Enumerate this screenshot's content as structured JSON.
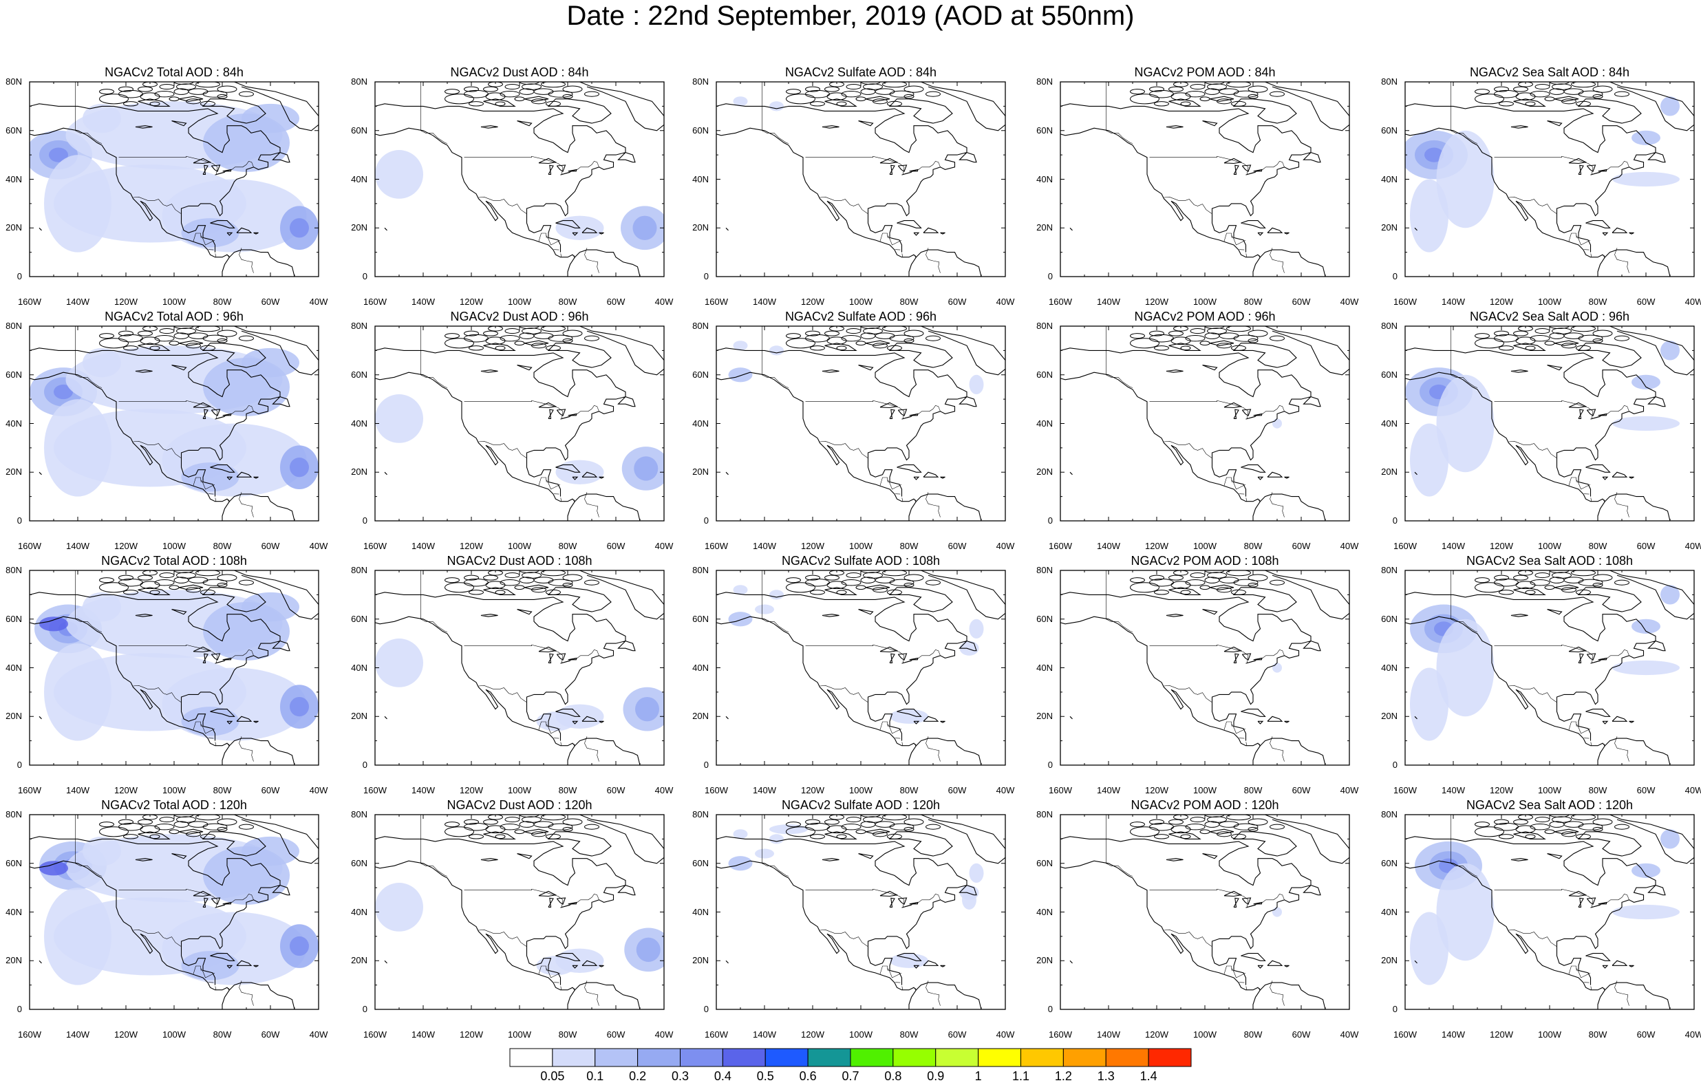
{
  "title": "Date : 22nd September, 2019 (AOD at 550nm)",
  "latitude_ticks": [
    "80N",
    "60N",
    "40N",
    "20N",
    "0"
  ],
  "longitude_ticks": [
    "160W",
    "140W",
    "120W",
    "100W",
    "80W",
    "60W",
    "40W"
  ],
  "panels": [
    [
      {
        "title": "NGACv2 Total AOD : 84h",
        "species": "total",
        "forecast_hour": 84
      },
      {
        "title": "NGACv2 Dust AOD : 84h",
        "species": "dust",
        "forecast_hour": 84
      },
      {
        "title": "NGACv2 Sulfate AOD : 84h",
        "species": "sulfate",
        "forecast_hour": 84
      },
      {
        "title": "NGACv2 POM AOD : 84h",
        "species": "pom",
        "forecast_hour": 84
      },
      {
        "title": "NGACv2 Sea Salt AOD : 84h",
        "species": "seasalt",
        "forecast_hour": 84
      }
    ],
    [
      {
        "title": "NGACv2 Total AOD : 96h",
        "species": "total",
        "forecast_hour": 96
      },
      {
        "title": "NGACv2 Dust AOD : 96h",
        "species": "dust",
        "forecast_hour": 96
      },
      {
        "title": "NGACv2 Sulfate AOD : 96h",
        "species": "sulfate",
        "forecast_hour": 96
      },
      {
        "title": "NGACv2 POM AOD : 96h",
        "species": "pom",
        "forecast_hour": 96
      },
      {
        "title": "NGACv2 Sea Salt AOD : 96h",
        "species": "seasalt",
        "forecast_hour": 96
      }
    ],
    [
      {
        "title": "NGACv2 Total AOD : 108h",
        "species": "total",
        "forecast_hour": 108
      },
      {
        "title": "NGACv2 Dust AOD : 108h",
        "species": "dust",
        "forecast_hour": 108
      },
      {
        "title": "NGACv2 Sulfate AOD : 108h",
        "species": "sulfate",
        "forecast_hour": 108
      },
      {
        "title": "NGACv2 POM AOD : 108h",
        "species": "pom",
        "forecast_hour": 108
      },
      {
        "title": "NGACv2 Sea Salt AOD : 108h",
        "species": "seasalt",
        "forecast_hour": 108
      }
    ],
    [
      {
        "title": "NGACv2 Total AOD : 120h",
        "species": "total",
        "forecast_hour": 120
      },
      {
        "title": "NGACv2 Dust AOD : 120h",
        "species": "dust",
        "forecast_hour": 120
      },
      {
        "title": "NGACv2 Sulfate AOD : 120h",
        "species": "sulfate",
        "forecast_hour": 120
      },
      {
        "title": "NGACv2 POM AOD : 120h",
        "species": "pom",
        "forecast_hour": 120
      },
      {
        "title": "NGACv2 Sea Salt  AOD : 120h",
        "species": "seasalt",
        "forecast_hour": 120
      }
    ]
  ],
  "colorbar": {
    "labels": [
      "0.05",
      "0.1",
      "0.2",
      "0.3",
      "0.4",
      "0.5",
      "0.6",
      "0.7",
      "0.8",
      "0.9",
      "1",
      "1.1",
      "1.2",
      "1.3",
      "1.4"
    ],
    "colors": [
      "#ffffff",
      "#d4dcfa",
      "#b4c3f6",
      "#96aaf2",
      "#7d8ff0",
      "#5a64ea",
      "#1e5aff",
      "#149696",
      "#50f000",
      "#96ff00",
      "#c8ff32",
      "#ffff00",
      "#ffc800",
      "#ffa000",
      "#ff7800",
      "#ff2800"
    ]
  }
}
